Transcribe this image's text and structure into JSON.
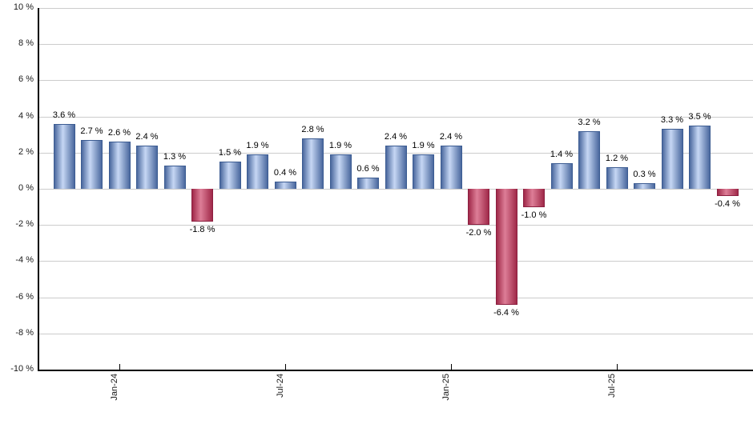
{
  "chart_data": {
    "type": "bar",
    "title": "",
    "xlabel": "",
    "ylabel": "",
    "ylim": [
      -10,
      10
    ],
    "grid": "horizontal",
    "values": [
      3.6,
      2.7,
      2.6,
      2.4,
      1.3,
      -1.8,
      1.5,
      1.9,
      0.4,
      2.8,
      1.9,
      0.6,
      2.4,
      1.9,
      2.4,
      -2.0,
      -6.4,
      -1.0,
      1.4,
      3.2,
      1.2,
      0.3,
      3.3,
      3.5,
      -0.4
    ],
    "bar_labels": [
      "3.6 %",
      "2.7 %",
      "2.6 %",
      "2.4 %",
      "1.3 %",
      "-1.8 %",
      "1.5 %",
      "1.9 %",
      "0.4 %",
      "2.8 %",
      "1.9 %",
      "0.6 %",
      "2.4 %",
      "1.9 %",
      "2.4 %",
      "-2.0 %",
      "-6.4 %",
      "-1.0 %",
      "1.4 %",
      "3.2 %",
      "1.2 %",
      "0.3 %",
      "3.3 %",
      "3.5 %",
      "-0.4 %"
    ],
    "x_ticks": [
      {
        "index": 2,
        "label": "Jan-24"
      },
      {
        "index": 8,
        "label": "Jul-24"
      },
      {
        "index": 14,
        "label": "Jan-25"
      },
      {
        "index": 20,
        "label": "Jul-25"
      }
    ],
    "y_ticks": [
      {
        "value": 10,
        "label": "10 %"
      },
      {
        "value": 8,
        "label": "8 %"
      },
      {
        "value": 6,
        "label": "6 %"
      },
      {
        "value": 4,
        "label": "4 %"
      },
      {
        "value": 2,
        "label": "2 %"
      },
      {
        "value": 0,
        "label": "0 %"
      },
      {
        "value": -2,
        "label": "-2 %"
      },
      {
        "value": -4,
        "label": "-4 %"
      },
      {
        "value": -6,
        "label": "-6 %"
      },
      {
        "value": -8,
        "label": "-8 %"
      },
      {
        "value": -10,
        "label": "-10 %"
      }
    ],
    "colors": {
      "positive_edge": "#4a689e",
      "positive_light": "#c6d7f4",
      "positive_border": "#3c5c92",
      "negative_edge": "#a02949",
      "negative_light": "#dd7e97",
      "negative_border": "#8c1f40",
      "gridline": "#cccccc",
      "axis": "#000000"
    }
  }
}
